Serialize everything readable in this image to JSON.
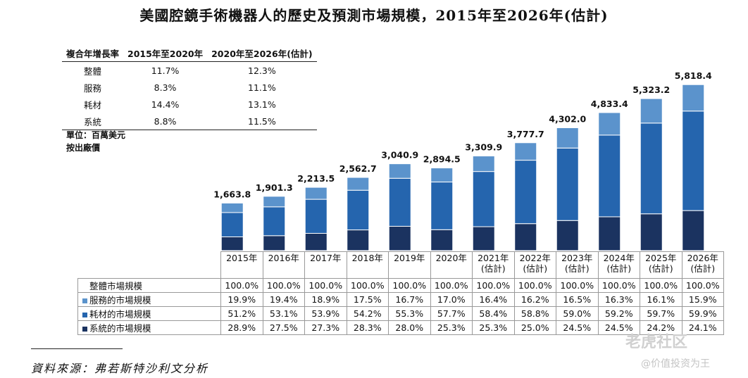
{
  "title": "美國腔鏡手術機器人的歷史及預測市場規模，2015年至2026年(估計)",
  "cagr_table": {
    "headers": [
      "複合年增長率",
      "2015年至2020年",
      "2020年至2026年(估計)"
    ],
    "rows": [
      {
        "label": "整體",
        "c1": "11.7%",
        "c2": "12.3%"
      },
      {
        "label": "服務",
        "c1": "8.3%",
        "c2": "11.1%"
      },
      {
        "label": "耗材",
        "c1": "14.4%",
        "c2": "13.1%"
      },
      {
        "label": "系統",
        "c1": "8.8%",
        "c2": "11.5%"
      }
    ]
  },
  "unit_line1": "單位：百萬美元",
  "unit_line2": "按出廠價",
  "chart_data": {
    "type": "bar",
    "stacked": true,
    "title": "美國腔鏡手術機器人的歷史及預測市場規模，2015年至2026年(估計)",
    "categories": [
      "2015年",
      "2016年",
      "2017年",
      "2018年",
      "2019年",
      "2020年",
      "2021年",
      "2022年",
      "2023年",
      "2024年",
      "2025年",
      "2026年"
    ],
    "category_sub": [
      "",
      "",
      "",
      "",
      "",
      "",
      "(估計)",
      "(估計)",
      "(估計)",
      "(估計)",
      "(估計)",
      "(估計)"
    ],
    "totals": [
      1663.8,
      1901.3,
      2213.5,
      2562.7,
      3040.9,
      2894.5,
      3309.9,
      3777.7,
      4302.0,
      4833.4,
      5323.2,
      5818.4
    ],
    "total_labels": [
      "1,663.8",
      "1,901.3",
      "2,213.5",
      "2,562.7",
      "3,040.9",
      "2,894.5",
      "3,309.9",
      "3,777.7",
      "4,302.0",
      "4,833.4",
      "5,323.2",
      "5,818.4"
    ],
    "series": [
      {
        "name": "系統的市場規模",
        "color": "#1b3360",
        "share": [
          28.9,
          27.5,
          27.3,
          28.3,
          28.0,
          25.3,
          25.3,
          25.0,
          24.5,
          24.5,
          24.2,
          24.1
        ]
      },
      {
        "name": "耗材的市場規模",
        "color": "#2565ae",
        "share": [
          51.2,
          53.1,
          53.9,
          54.2,
          55.3,
          57.7,
          58.4,
          58.8,
          59.0,
          59.2,
          59.7,
          59.9
        ]
      },
      {
        "name": "服務的市場規模",
        "color": "#5b93cc",
        "share": [
          19.9,
          19.4,
          18.9,
          17.5,
          16.7,
          17.0,
          16.4,
          16.2,
          16.5,
          16.3,
          16.1,
          15.9
        ]
      }
    ],
    "table_rows": [
      {
        "label": "整體市場規模",
        "marker": "",
        "values": [
          "100.0%",
          "100.0%",
          "100.0%",
          "100.0%",
          "100.0%",
          "100.0%",
          "100.0%",
          "100.0%",
          "100.0%",
          "100.0%",
          "100.0%",
          "100.0%"
        ]
      },
      {
        "label": "服務的市場規模",
        "marker": "#5b93cc",
        "values": [
          "19.9%",
          "19.4%",
          "18.9%",
          "17.5%",
          "16.7%",
          "17.0%",
          "16.4%",
          "16.2%",
          "16.5%",
          "16.3%",
          "16.1%",
          "15.9%"
        ]
      },
      {
        "label": "耗材的市場規模",
        "marker": "#2565ae",
        "values": [
          "51.2%",
          "53.1%",
          "53.9%",
          "54.2%",
          "55.3%",
          "57.7%",
          "58.4%",
          "58.8%",
          "59.0%",
          "59.2%",
          "59.7%",
          "59.9%"
        ]
      },
      {
        "label": "系統的市場規模",
        "marker": "#1b3360",
        "values": [
          "28.9%",
          "27.5%",
          "27.3%",
          "28.3%",
          "28.0%",
          "25.3%",
          "25.3%",
          "25.0%",
          "24.5%",
          "24.5%",
          "24.2%",
          "24.1%"
        ]
      }
    ],
    "ylim": [
      0,
      6000
    ]
  },
  "source": "資料來源：弗若斯特沙利文分析",
  "watermark_main": "老虎社区",
  "watermark_sub": "@价值投资为王"
}
